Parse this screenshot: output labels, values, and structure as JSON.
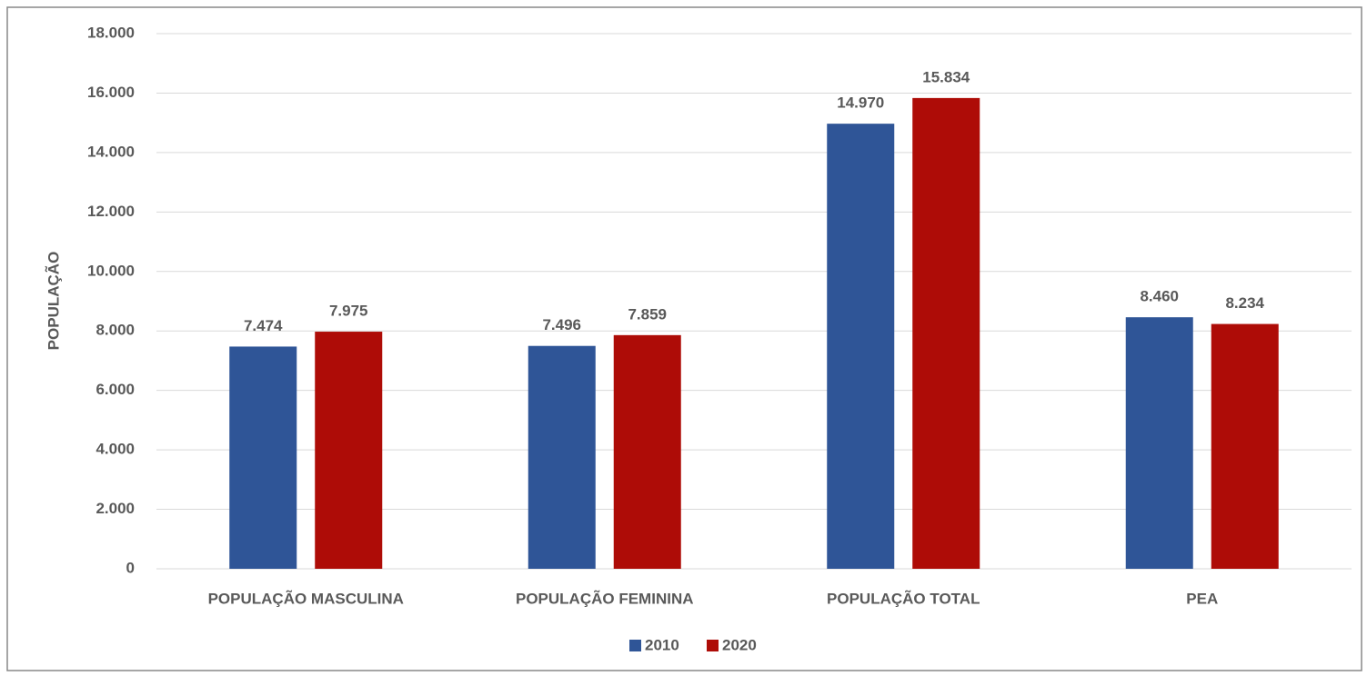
{
  "chart_data": {
    "type": "bar",
    "ylabel": "POPULAÇÃO",
    "categories": [
      "POPULAÇÃO MASCULINA",
      "POPULAÇÃO FEMININA",
      "POPULAÇÃO TOTAL",
      "PEA"
    ],
    "series": [
      {
        "name": "2010",
        "color": "#2f5597",
        "values": [
          7474,
          7496,
          14970,
          8460
        ],
        "value_labels": [
          "7.474",
          "7.496",
          "14.970",
          "8.460"
        ]
      },
      {
        "name": "2020",
        "color": "#ae0c07",
        "values": [
          7975,
          7859,
          15834,
          8234
        ],
        "value_labels": [
          "7.975",
          "7.859",
          "15.834",
          "8.234"
        ]
      }
    ],
    "ylim": [
      0,
      18000
    ],
    "yticks": [
      0,
      {
        "value": 2000,
        "label": "2.000"
      },
      {
        "value": 4000,
        "label": "4.000"
      },
      {
        "value": 6000,
        "label": "6.000"
      },
      {
        "value": 8000,
        "label": "8.000"
      },
      {
        "value": 10000,
        "label": "10.000"
      },
      {
        "value": 12000,
        "label": "12.000"
      },
      {
        "value": 14000,
        "label": "14.000"
      },
      {
        "value": 16000,
        "label": "16.000"
      },
      {
        "value": 18000,
        "label": "18.000"
      }
    ],
    "grid": true,
    "legend": "bottom"
  }
}
